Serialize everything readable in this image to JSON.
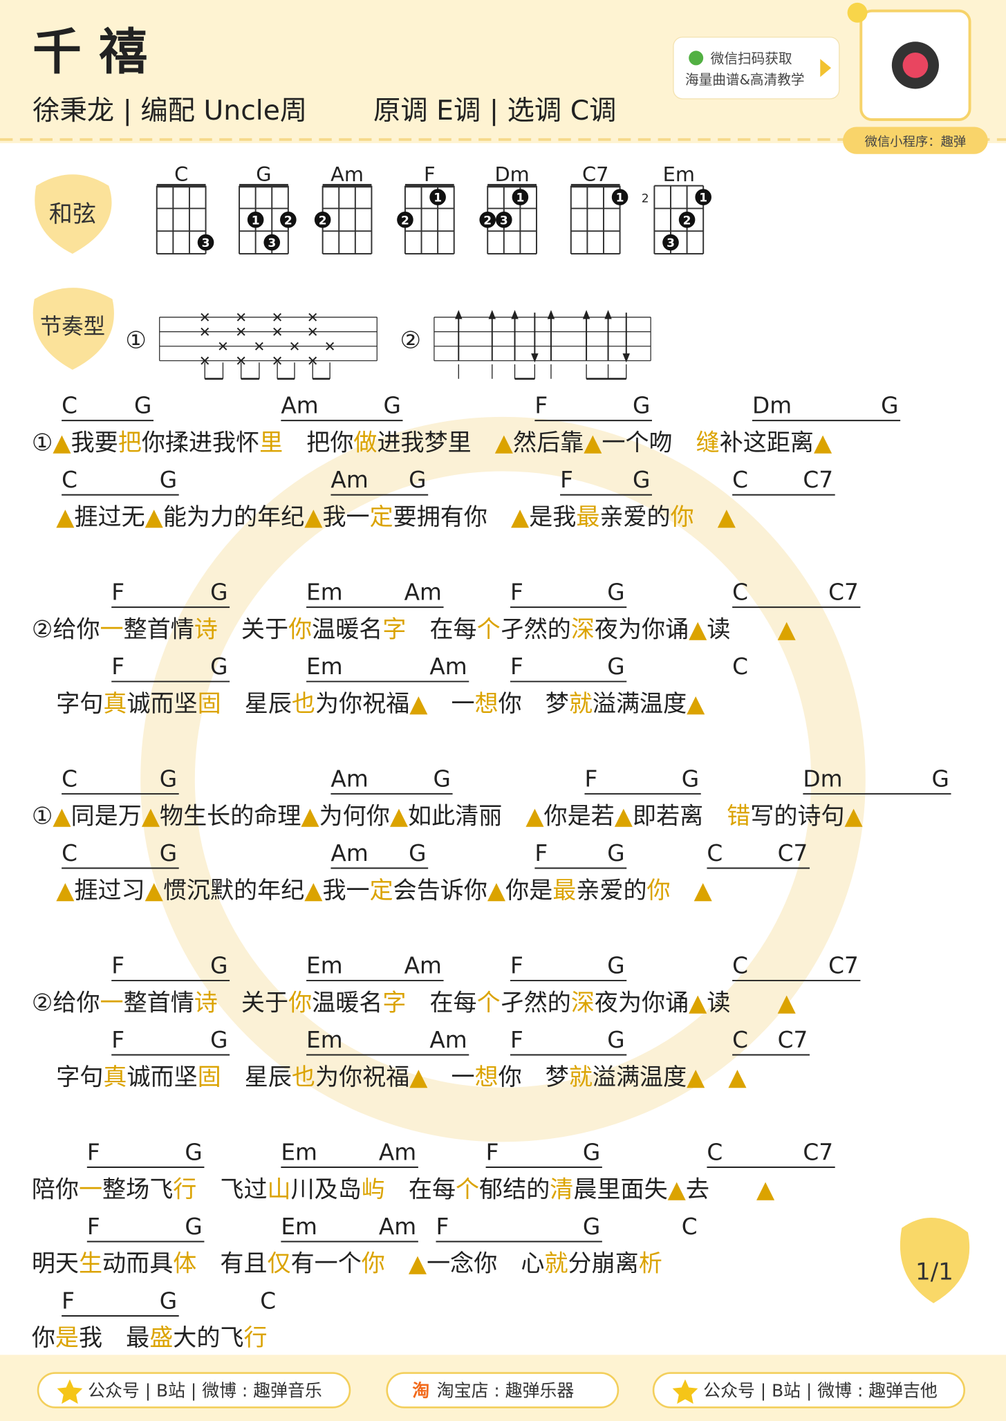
{
  "header": {
    "title": "千 禧",
    "artist": "徐秉龙 | 编配 Uncle周",
    "key": "原调 E调 | 选调 C调"
  },
  "promo": {
    "line1": "微信扫码获取",
    "line2": "海量曲谱&高清教学",
    "miniapp": "微信小程序：趣弹"
  },
  "chords": {
    "label": "和弦",
    "items": [
      {
        "name": "C",
        "dots": [
          {
            "string": 4,
            "fret": 3,
            "finger": 3
          }
        ]
      },
      {
        "name": "G",
        "dots": [
          {
            "string": 2,
            "fret": 2,
            "finger": 1
          },
          {
            "string": 4,
            "fret": 2,
            "finger": 2
          },
          {
            "string": 3,
            "fret": 3,
            "finger": 3
          }
        ]
      },
      {
        "name": "Am",
        "dots": [
          {
            "string": 1,
            "fret": 2,
            "finger": 2
          }
        ]
      },
      {
        "name": "F",
        "dots": [
          {
            "string": 1,
            "fret": 2,
            "finger": 2
          },
          {
            "string": 3,
            "fret": 1,
            "finger": 1
          }
        ]
      },
      {
        "name": "Dm",
        "dots": [
          {
            "string": 1,
            "fret": 2,
            "finger": 2
          },
          {
            "string": 2,
            "fret": 2,
            "finger": 3
          },
          {
            "string": 3,
            "fret": 1,
            "finger": 1
          }
        ]
      },
      {
        "name": "C7",
        "dots": [
          {
            "string": 4,
            "fret": 1,
            "finger": 1
          }
        ]
      },
      {
        "name": "Em",
        "position": 2,
        "dots": [
          {
            "string": 4,
            "fret": 1,
            "finger": 1
          },
          {
            "string": 3,
            "fret": 2,
            "finger": 2
          },
          {
            "string": 2,
            "fret": 3,
            "finger": 3
          }
        ]
      }
    ]
  },
  "rhythm": {
    "label": "节奏型",
    "patterns": [
      "①",
      "②"
    ]
  },
  "sheet": [
    {
      "chords": [
        "C",
        "G",
        "Am",
        "G",
        "F",
        "G",
        "Dm",
        "G"
      ],
      "lyrics": [
        "①▲我要",
        "把",
        "你揉进我怀",
        "里",
        "　把你",
        "做",
        "进我梦里　▲然后靠▲一个吻　",
        "缝",
        "补这距离▲"
      ]
    },
    {
      "chords": [
        "C",
        "G",
        "Am",
        "G",
        "F",
        "G",
        "C",
        "C7"
      ],
      "lyrics": [
        "▲捱过无▲能为力的年纪▲我一",
        "定",
        "要拥有你　▲是我",
        "最",
        "亲爱的",
        "你",
        "　▲"
      ]
    },
    {
      "chords": [
        "F",
        "G",
        "Em",
        "Am",
        "F",
        "G",
        "C",
        "C7"
      ],
      "lyrics": [
        "②给你",
        "一",
        "整首情",
        "诗",
        "　关于",
        "你",
        "温暖名",
        "字",
        "　在每",
        "个",
        "孑然的",
        "深",
        "夜为你诵▲读　　▲"
      ]
    },
    {
      "chords": [
        "F",
        "G",
        "Em",
        "Am",
        "F",
        "G",
        "C"
      ],
      "lyrics": [
        "字句",
        "真",
        "诚而坚",
        "固",
        "　星辰",
        "也",
        "为你祝福▲　一",
        "想",
        "你　梦",
        "就",
        "溢满温度▲"
      ]
    },
    {
      "chords": [
        "C",
        "G",
        "Am",
        "G",
        "F",
        "G",
        "Dm",
        "G"
      ],
      "lyrics": [
        "①▲同是万▲物生长的命理▲为何你▲如此清丽　▲你是若▲即若离　",
        "错",
        "写的诗句▲"
      ]
    },
    {
      "chords": [
        "C",
        "G",
        "Am",
        "G",
        "F",
        "G",
        "C",
        "C7"
      ],
      "lyrics": [
        "▲捱过习▲惯沉默的年纪▲我一",
        "定",
        "会告诉你▲你是",
        "最",
        "亲爱的",
        "你",
        "　▲"
      ]
    },
    {
      "chords": [
        "F",
        "G",
        "Em",
        "Am",
        "F",
        "G",
        "C",
        "C7"
      ],
      "lyrics": [
        "②给你",
        "一",
        "整首情",
        "诗",
        "　关于",
        "你",
        "温暖名",
        "字",
        "　在每",
        "个",
        "孑然的",
        "深",
        "夜为你诵▲读　　▲"
      ]
    },
    {
      "chords": [
        "F",
        "G",
        "Em",
        "Am",
        "F",
        "G",
        "C",
        "C7"
      ],
      "lyrics": [
        "字句",
        "真",
        "诚而坚",
        "固",
        "　星辰",
        "也",
        "为你祝福▲　一",
        "想",
        "你　梦",
        "就",
        "溢满温度▲　▲"
      ]
    },
    {
      "chords": [
        "F",
        "G",
        "Em",
        "Am",
        "F",
        "G",
        "C",
        "C7"
      ],
      "lyrics": [
        "陪你",
        "一",
        "整场飞",
        "行",
        "　飞过",
        "山",
        "川及岛",
        "屿",
        "　在每",
        "个",
        "郁结的",
        "清",
        "晨里面失▲去　　▲"
      ]
    },
    {
      "chords": [
        "F",
        "G",
        "Em",
        "Am",
        "F",
        "G",
        "C"
      ],
      "lyrics": [
        "明天",
        "生",
        "动而具",
        "体",
        "　有且",
        "仅",
        "有一个",
        "你",
        "　▲一念你　心",
        "就",
        "分崩离",
        "析"
      ]
    },
    {
      "chords": [
        "F",
        "G",
        "C"
      ],
      "lyrics": [
        "你",
        "是",
        "我　最",
        "盛",
        "大的飞",
        "行"
      ]
    }
  ],
  "page": "1/1",
  "footer": [
    {
      "text": "公众号 | B站 | 微博 : 趣弹音乐"
    },
    {
      "icon": "淘",
      "text": "淘宝店 : 趣弹乐器"
    },
    {
      "text": "公众号 | B站 | 微博 : 趣弹吉他"
    }
  ]
}
